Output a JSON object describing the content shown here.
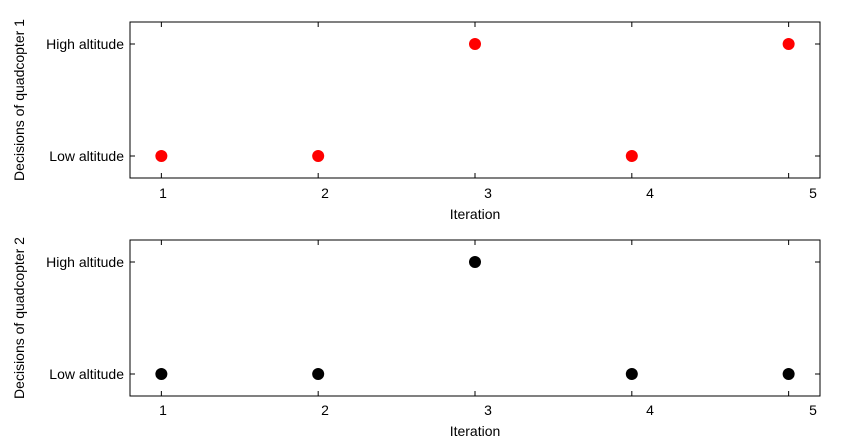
{
  "chart_data": [
    {
      "type": "scatter",
      "xlabel": "Iteration",
      "ylabel": "Decisions of quadcopter 1",
      "x_ticks": [
        "1",
        "2",
        "3",
        "4",
        "5"
      ],
      "y_categories": [
        "Low altitude",
        "High altitude"
      ],
      "xlim": [
        0.8,
        5.2
      ],
      "marker_color": "#ff0000",
      "points": [
        {
          "x": 1,
          "y": "Low altitude"
        },
        {
          "x": 2,
          "y": "Low altitude"
        },
        {
          "x": 3,
          "y": "High altitude"
        },
        {
          "x": 4,
          "y": "Low altitude"
        },
        {
          "x": 5,
          "y": "High altitude"
        }
      ],
      "grid": false
    },
    {
      "type": "scatter",
      "xlabel": "Iteration",
      "ylabel": "Decisions of quadcopter 2",
      "x_ticks": [
        "1",
        "2",
        "3",
        "4",
        "5"
      ],
      "y_categories": [
        "Low altitude",
        "High altitude"
      ],
      "xlim": [
        0.8,
        5.2
      ],
      "marker_color": "#000000",
      "points": [
        {
          "x": 1,
          "y": "Low altitude"
        },
        {
          "x": 2,
          "y": "Low altitude"
        },
        {
          "x": 3,
          "y": "High altitude"
        },
        {
          "x": 4,
          "y": "Low altitude"
        },
        {
          "x": 5,
          "y": "Low altitude"
        }
      ],
      "grid": false
    }
  ]
}
